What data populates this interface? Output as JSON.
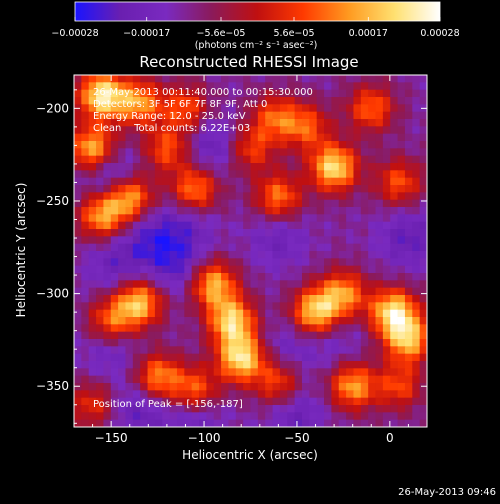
{
  "chart_data": {
    "type": "heatmap",
    "title": "Reconstructed RHESSI Image",
    "xlabel": "Heliocentric X (arcsec)",
    "ylabel": "Heliocentric Y (arcsec)",
    "xlim": [
      -170,
      20
    ],
    "ylim": [
      -372,
      -182
    ],
    "x_ticks": [
      -150,
      -100,
      -50,
      0
    ],
    "x_tick_labels": [
      "-150",
      "-100",
      "-50",
      "0"
    ],
    "y_ticks": [
      -200,
      -250,
      -300,
      -350
    ],
    "y_tick_labels": [
      "-200",
      "-250",
      "-300",
      "-350"
    ],
    "colorbar": {
      "range": [
        -0.00028,
        0.00028
      ],
      "tick_values": [
        -0.00028,
        -0.00017,
        -5.6e-05,
        5.6e-05,
        0.00017,
        0.00028
      ],
      "tick_labels": [
        "-0.00028",
        "-0.00017",
        "-5.6e-05",
        "5.6e-05",
        "0.00017",
        "0.00028"
      ],
      "units_label": "(photons cm⁻² s⁻¹ asec⁻²)"
    },
    "annotations": [
      "26-May-2013 00:11:40.000 to 00:15:30.000",
      "Detectors: 3F 5F 6F 7F 8F 9F, Att 0",
      "Energy Range: 12.0 - 25.0 keV",
      "Clean    Total counts: 6.22E+03"
    ],
    "peak_label": "Position of Peak = [-156,-187]",
    "peak_position": [
      -156,
      -187
    ],
    "footer": "26-May-2013 09:46",
    "colormap_stops": [
      "#1a14ff",
      "#6a1fb0",
      "#7a2ac0",
      "#8b1a5a",
      "#c01010",
      "#ff3a00",
      "#ff9a20",
      "#ffe070",
      "#ffffff"
    ],
    "hotspots": [
      {
        "x": -155,
        "y": -193,
        "v": 1.0
      },
      {
        "x": -135,
        "y": -197,
        "v": 0.7
      },
      {
        "x": -110,
        "y": -200,
        "v": 0.55
      },
      {
        "x": -160,
        "y": -222,
        "v": 0.85
      },
      {
        "x": -120,
        "y": -222,
        "v": 0.55
      },
      {
        "x": -140,
        "y": -248,
        "v": 0.8
      },
      {
        "x": -155,
        "y": -258,
        "v": 0.75
      },
      {
        "x": -105,
        "y": -244,
        "v": 0.7
      },
      {
        "x": -60,
        "y": -248,
        "v": 0.65
      },
      {
        "x": -62,
        "y": -205,
        "v": 0.55
      },
      {
        "x": -75,
        "y": -222,
        "v": 0.5
      },
      {
        "x": -30,
        "y": -232,
        "v": 0.95
      },
      {
        "x": -45,
        "y": -210,
        "v": 0.55
      },
      {
        "x": -10,
        "y": -200,
        "v": 0.6
      },
      {
        "x": 5,
        "y": -240,
        "v": 0.55
      },
      {
        "x": -135,
        "y": -305,
        "v": 0.85
      },
      {
        "x": -150,
        "y": -315,
        "v": 0.6
      },
      {
        "x": -95,
        "y": -295,
        "v": 0.8
      },
      {
        "x": -85,
        "y": -315,
        "v": 0.9
      },
      {
        "x": -80,
        "y": -335,
        "v": 0.95
      },
      {
        "x": -40,
        "y": -310,
        "v": 0.9
      },
      {
        "x": -25,
        "y": -300,
        "v": 0.7
      },
      {
        "x": 2,
        "y": -310,
        "v": 0.95
      },
      {
        "x": 10,
        "y": -325,
        "v": 0.8
      },
      {
        "x": -125,
        "y": -345,
        "v": 0.7
      },
      {
        "x": -105,
        "y": -352,
        "v": 0.6
      },
      {
        "x": -60,
        "y": -348,
        "v": 0.55
      },
      {
        "x": -20,
        "y": -350,
        "v": 0.75
      },
      {
        "x": 5,
        "y": -350,
        "v": 0.5
      },
      {
        "x": -160,
        "y": -360,
        "v": 0.45
      }
    ],
    "coldspots": [
      {
        "x": -150,
        "y": -236,
        "v": 0.9
      },
      {
        "x": -95,
        "y": -220,
        "v": 0.7
      },
      {
        "x": -130,
        "y": -270,
        "v": 0.7
      },
      {
        "x": -110,
        "y": -262,
        "v": 0.6
      },
      {
        "x": -60,
        "y": -270,
        "v": 0.55
      },
      {
        "x": 10,
        "y": -270,
        "v": 0.7
      },
      {
        "x": -148,
        "y": -285,
        "v": 0.6
      },
      {
        "x": -115,
        "y": -285,
        "v": 0.75
      },
      {
        "x": -55,
        "y": -330,
        "v": 0.5
      },
      {
        "x": -150,
        "y": -330,
        "v": 0.55
      },
      {
        "x": -135,
        "y": -362,
        "v": 0.7
      },
      {
        "x": -50,
        "y": -365,
        "v": 0.65
      },
      {
        "x": -105,
        "y": -368,
        "v": 0.6
      },
      {
        "x": -30,
        "y": -325,
        "v": 0.4
      }
    ]
  }
}
